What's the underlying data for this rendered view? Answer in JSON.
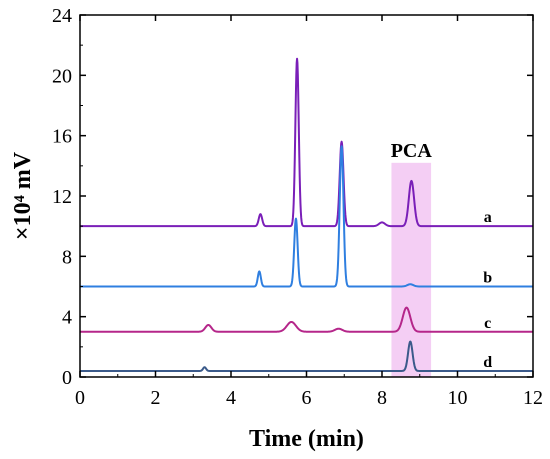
{
  "chart_data": {
    "type": "line",
    "xlabel": "Time (min)",
    "ylabel": "×10⁴ mV",
    "xlim": [
      0,
      12
    ],
    "ylim": [
      0,
      24
    ],
    "x_ticks": [
      "0",
      "2",
      "4",
      "6",
      "8",
      "10",
      "12"
    ],
    "y_ticks": [
      "0",
      "4",
      "8",
      "12",
      "16",
      "20",
      "24"
    ],
    "grid": false,
    "legend": "none",
    "highlight_region": {
      "label": "PCA",
      "x_range": [
        8.25,
        9.3
      ],
      "color": "#f0bdf0"
    },
    "series": [
      {
        "name": "a",
        "color": "#7a1fb8",
        "baseline": 10.0,
        "peaks": [
          {
            "x": 4.78,
            "height": 0.8,
            "width": 0.045
          },
          {
            "x": 5.75,
            "height": 11.1,
            "width": 0.045
          },
          {
            "x": 6.93,
            "height": 5.6,
            "width": 0.05
          },
          {
            "x": 8.78,
            "height": 3.0,
            "width": 0.07
          },
          {
            "x": 8.0,
            "height": 0.25,
            "width": 0.08
          }
        ]
      },
      {
        "name": "b",
        "color": "#2f7fe0",
        "baseline": 6.0,
        "peaks": [
          {
            "x": 4.75,
            "height": 1.0,
            "width": 0.04
          },
          {
            "x": 5.72,
            "height": 4.5,
            "width": 0.045
          },
          {
            "x": 6.93,
            "height": 9.3,
            "width": 0.05
          },
          {
            "x": 8.75,
            "height": 0.15,
            "width": 0.08
          }
        ]
      },
      {
        "name": "c",
        "color": "#b5268a",
        "baseline": 3.0,
        "peaks": [
          {
            "x": 3.4,
            "height": 0.45,
            "width": 0.08
          },
          {
            "x": 5.6,
            "height": 0.65,
            "width": 0.12
          },
          {
            "x": 6.85,
            "height": 0.2,
            "width": 0.1
          },
          {
            "x": 8.65,
            "height": 1.6,
            "width": 0.1
          }
        ]
      },
      {
        "name": "d",
        "color": "#3b5a8a",
        "baseline": 0.4,
        "peaks": [
          {
            "x": 3.3,
            "height": 0.25,
            "width": 0.04
          },
          {
            "x": 8.75,
            "height": 1.95,
            "width": 0.06
          }
        ]
      }
    ]
  }
}
